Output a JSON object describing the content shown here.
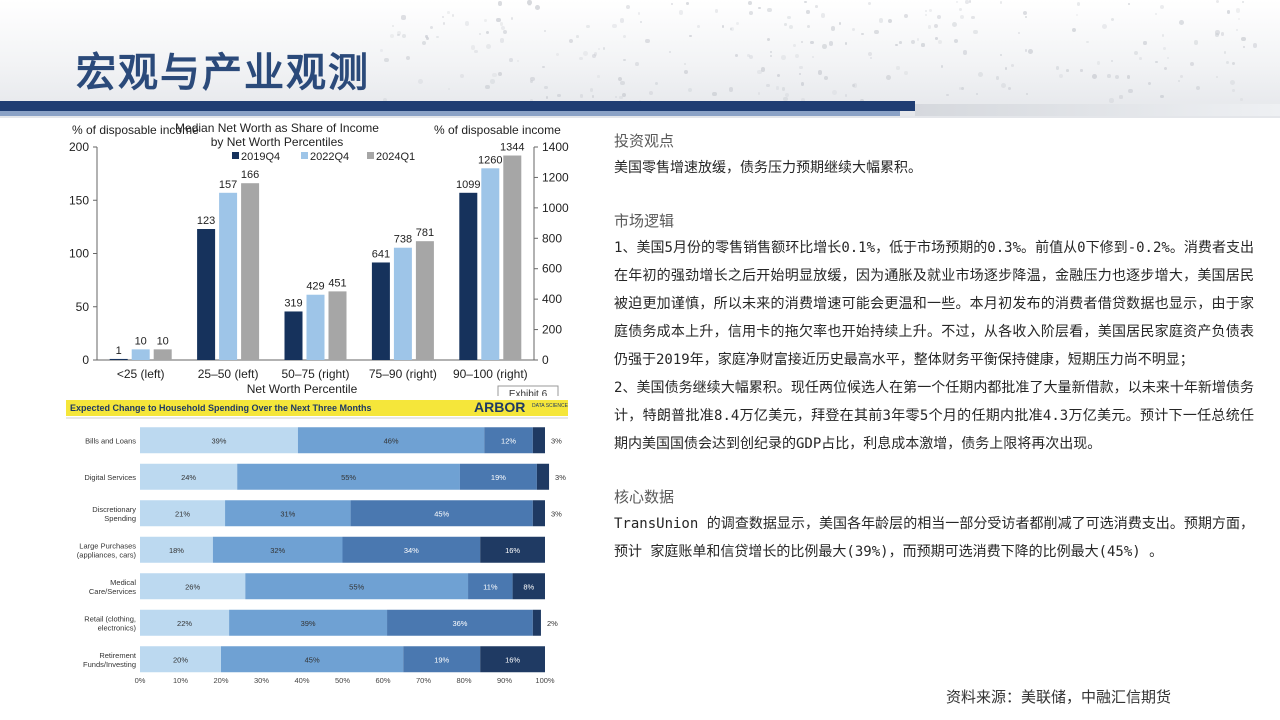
{
  "page": {
    "title": "宏观与产业观测"
  },
  "source": "资料来源：美联储，中融汇信期货",
  "panel": {
    "s1": {
      "title": "投资观点",
      "body": "美国零售增速放缓，债务压力预期继续大幅累积。"
    },
    "s2": {
      "title": "市场逻辑",
      "body": "1、美国5月份的零售销售额环比增长0.1%，低于市场预期的0.3%。前值从0下修到-0.2%。消费者支出在年初的强劲增长之后开始明显放缓，因为通胀及就业市场逐步降温，金融压力也逐步增大，美国居民被迫更加谨慎，所以未来的消费增速可能会更温和一些。本月初发布的消费者借贷数据也显示，由于家庭债务成本上升，信用卡的拖欠率也开始持续上升。不过，从各收入阶层看，美国居民家庭资产负债表仍强于2019年，家庭净财富接近历史最高水平，整体财务平衡保持健康，短期压力尚不明显；",
      "body2": "2、美国债务继续大幅累积。现任两位候选人在第一个任期内都批准了大量新借款，以未来十年新增债务计，特朗普批准8.4万亿美元，拜登在其前3年零5个月的任期内批准4.3万亿美元。预计下一任总统任期内美国国债会达到创纪录的GDP占比，利息成本激增，债务上限将再次出现。"
    },
    "s3": {
      "title": "核心数据",
      "body": "TransUnion 的调查数据显示，美国各年龄层的相当一部分受访者都削减了可选消费支出。预期方面，预计 家庭账单和信贷增长的比例最大(39%)，而预期可选消费下降的比例最大(45%) 。"
    }
  },
  "chart_data": [
    {
      "type": "bar",
      "title": "Median Net Worth as Share of Income by Net Worth Percentiles",
      "title_lines": [
        "Median Net Worth as Share of Income",
        "by Net Worth Percentiles"
      ],
      "left_axis_label": "% of disposable income",
      "right_axis_label": "% of disposable income",
      "xlabel": "Net Worth Percentile",
      "exhibit": "Exhibit 6",
      "categories": [
        "<25 (left)",
        "25–50 (left)",
        "50–75 (right)",
        "75–90 (right)",
        "90–100 (right)"
      ],
      "axis_side": [
        "left",
        "left",
        "right",
        "right",
        "right"
      ],
      "series": [
        {
          "name": "2019Q4",
          "color": "#16325c",
          "values": [
            1,
            123,
            319,
            641,
            1099
          ]
        },
        {
          "name": "2022Q4",
          "color": "#9ec5e8",
          "values": [
            10,
            157,
            429,
            738,
            1260
          ]
        },
        {
          "name": "2024Q1",
          "color": "#a6a6a6",
          "values": [
            10,
            166,
            451,
            781,
            1344
          ]
        }
      ],
      "ylim_left": [
        0,
        200
      ],
      "yticks_left": [
        0,
        50,
        100,
        150,
        200
      ],
      "ylim_right": [
        0,
        1400
      ],
      "yticks_right": [
        0,
        200,
        400,
        600,
        800,
        1000,
        1200,
        1400
      ]
    },
    {
      "type": "bar",
      "orientation": "horizontal-stacked",
      "title": "Expected Change to Household Spending Over the Next Three Months",
      "logo": "ARBOR",
      "logo_sub": "DATA SCIENCE",
      "categories": [
        [
          "Bills and Loans"
        ],
        [
          "Digital Services"
        ],
        [
          "Discretionary",
          "Spending"
        ],
        [
          "Large Purchases",
          "(appliances, cars)"
        ],
        [
          "Medical",
          "Care/Services"
        ],
        [
          "Retail (clothing,",
          "electronics)"
        ],
        [
          "Retirement",
          "Funds/Investing"
        ]
      ],
      "segment_colors": [
        "#bcd9f0",
        "#6fa1d3",
        "#4a78b0",
        "#1f3a63"
      ],
      "values": [
        [
          39,
          46,
          12,
          3
        ],
        [
          24,
          55,
          19,
          3
        ],
        [
          21,
          31,
          45,
          3
        ],
        [
          18,
          32,
          34,
          16
        ],
        [
          26,
          55,
          11,
          8
        ],
        [
          22,
          39,
          36,
          2
        ],
        [
          20,
          45,
          19,
          16
        ]
      ],
      "xticks": [
        "0%",
        "10%",
        "20%",
        "30%",
        "40%",
        "50%",
        "60%",
        "70%",
        "80%",
        "90%",
        "100%"
      ],
      "xlim": [
        0,
        100
      ]
    }
  ]
}
